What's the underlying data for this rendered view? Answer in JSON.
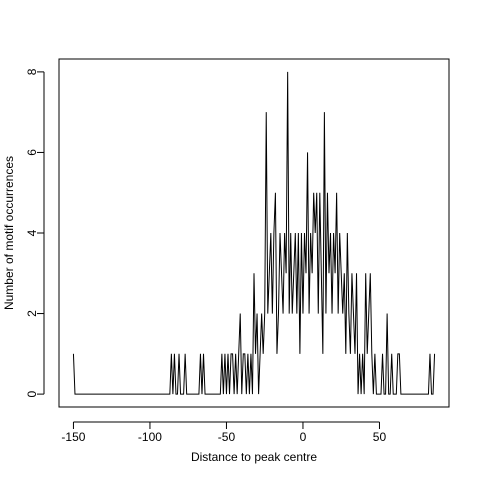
{
  "chart_data": {
    "type": "line",
    "xlabel": "Distance to peak centre",
    "ylabel": "Number of motif occurrences",
    "color": "#000000",
    "x": [
      -150,
      -149,
      -148,
      -147,
      -146,
      -145,
      -144,
      -143,
      -142,
      -141,
      -140,
      -139,
      -138,
      -137,
      -136,
      -135,
      -134,
      -133,
      -132,
      -131,
      -130,
      -129,
      -128,
      -127,
      -126,
      -125,
      -124,
      -123,
      -122,
      -121,
      -120,
      -119,
      -118,
      -117,
      -116,
      -115,
      -114,
      -113,
      -112,
      -111,
      -110,
      -109,
      -108,
      -107,
      -106,
      -105,
      -104,
      -103,
      -102,
      -101,
      -100,
      -99,
      -98,
      -97,
      -96,
      -95,
      -94,
      -93,
      -92,
      -91,
      -90,
      -89,
      -88,
      -87,
      -86,
      -85,
      -84,
      -83,
      -82,
      -81,
      -80,
      -79,
      -78,
      -77,
      -76,
      -75,
      -74,
      -73,
      -72,
      -71,
      -70,
      -69,
      -68,
      -67,
      -66,
      -65,
      -64,
      -63,
      -62,
      -61,
      -60,
      -59,
      -58,
      -57,
      -56,
      -55,
      -54,
      -53,
      -52,
      -51,
      -50,
      -49,
      -48,
      -47,
      -46,
      -45,
      -44,
      -43,
      -42,
      -41,
      -40,
      -39,
      -38,
      -37,
      -36,
      -35,
      -34,
      -33,
      -32,
      -31,
      -30,
      -29,
      -28,
      -27,
      -26,
      -25,
      -24,
      -23,
      -22,
      -21,
      -20,
      -19,
      -18,
      -17,
      -16,
      -15,
      -14,
      -13,
      -12,
      -11,
      -10,
      -9,
      -8,
      -7,
      -6,
      -5,
      -4,
      -3,
      -2,
      -1,
      0,
      1,
      2,
      3,
      4,
      5,
      6,
      7,
      8,
      9,
      10,
      11,
      12,
      13,
      14,
      15,
      16,
      17,
      18,
      19,
      20,
      21,
      22,
      23,
      24,
      25,
      26,
      27,
      28,
      29,
      30,
      31,
      32,
      33,
      34,
      35,
      36,
      37,
      38,
      39,
      40,
      41,
      42,
      43,
      44,
      45,
      46,
      47,
      48,
      49,
      50,
      51,
      52,
      53,
      54,
      55,
      56,
      57,
      58,
      59,
      60,
      61,
      62,
      63,
      64,
      65,
      66,
      67,
      68,
      69,
      70,
      71,
      72,
      73,
      74,
      75,
      76,
      77,
      78,
      79,
      80,
      81,
      82,
      83,
      84,
      85,
      86
    ],
    "values": [
      1,
      0,
      0,
      0,
      0,
      0,
      0,
      0,
      0,
      0,
      0,
      0,
      0,
      0,
      0,
      0,
      0,
      0,
      0,
      0,
      0,
      0,
      0,
      0,
      0,
      0,
      0,
      0,
      0,
      0,
      0,
      0,
      0,
      0,
      0,
      0,
      0,
      0,
      0,
      0,
      0,
      0,
      0,
      0,
      0,
      0,
      0,
      0,
      0,
      0,
      0,
      0,
      0,
      0,
      0,
      0,
      0,
      0,
      0,
      0,
      0,
      0,
      0,
      0,
      1,
      0,
      1,
      0,
      0,
      1,
      0,
      0,
      0,
      1,
      0,
      0,
      0,
      0,
      0,
      0,
      0,
      0,
      0,
      1,
      0,
      1,
      0,
      0,
      0,
      0,
      0,
      0,
      0,
      0,
      0,
      0,
      0,
      1,
      0,
      1,
      0,
      1,
      0,
      1,
      1,
      0,
      1,
      0,
      1,
      2,
      0,
      1,
      1,
      0,
      1,
      0,
      1,
      0,
      3,
      1,
      2,
      0,
      1,
      2,
      1,
      2,
      7,
      2,
      3,
      4,
      2,
      4,
      5,
      1,
      2,
      4,
      3,
      2,
      4,
      3,
      8,
      2,
      4,
      2,
      3,
      4,
      2,
      4,
      1,
      4,
      2,
      4,
      3,
      6,
      2,
      4,
      3,
      5,
      4,
      5,
      2,
      5,
      3,
      1,
      7,
      2,
      5,
      3,
      4,
      2,
      4,
      3,
      5,
      2,
      4,
      3,
      2,
      3,
      1,
      4,
      2,
      1,
      3,
      2,
      1,
      3,
      0,
      1,
      0,
      1,
      0,
      3,
      1,
      2,
      3,
      1,
      0,
      1,
      0,
      0,
      0,
      0,
      1,
      0,
      0,
      2,
      0,
      0,
      1,
      0,
      0,
      0,
      1,
      1,
      0,
      0,
      0,
      0,
      0,
      0,
      0,
      0,
      0,
      0,
      0,
      0,
      0,
      0,
      0,
      0,
      0,
      0,
      0,
      1,
      0,
      0,
      1
    ],
    "xlim": [
      -159.44,
      95.44
    ],
    "ylim": [
      -0.32,
      8.32
    ],
    "xticks": [
      -150,
      -100,
      -50,
      0,
      50
    ],
    "yticks": [
      0,
      2,
      4,
      6,
      8
    ]
  }
}
